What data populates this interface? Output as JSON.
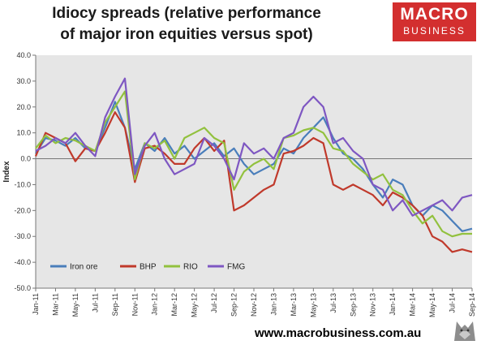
{
  "header": {
    "title_line1": "Idiocy spreads (relative performance",
    "title_line2": "of major iron equities versus spot)"
  },
  "logo": {
    "line1": "MACRO",
    "line2": "BUSINESS"
  },
  "footer": {
    "url": "www.macrobusiness.com.au"
  },
  "colors": {
    "plot_bg": "#e6e6e6",
    "logo_bg": "#d32f2f"
  },
  "chart_data": {
    "type": "line",
    "title": "Idiocy spreads (relative performance of major iron equities versus spot)",
    "xlabel": "",
    "ylabel": "Index",
    "ylim": [
      -50,
      40
    ],
    "yticks": [
      40,
      30,
      20,
      10,
      0,
      -10,
      -20,
      -30,
      -40,
      -50
    ],
    "ytick_labels": [
      "40.0",
      "30.0",
      "20.0",
      "10.0",
      "0.0",
      "-10.0",
      "-20.0",
      "-30.0",
      "-40.0",
      "-50.0"
    ],
    "xlim": [
      0,
      44
    ],
    "xticks": [
      "Jan-11",
      "Mar-11",
      "May-11",
      "Jul-11",
      "Sep-11",
      "Nov-11",
      "Jan-12",
      "Mar-12",
      "May-12",
      "Jul-12",
      "Sep-12",
      "Nov-12",
      "Jan-13",
      "Mar-13",
      "May-13",
      "Jul-13",
      "Sep-13",
      "Nov-13",
      "Jan-14",
      "Mar-14",
      "May-14",
      "Jul-14",
      "Sep-14"
    ],
    "grid": false,
    "legend_position": "bottom-left",
    "x": [
      0,
      1,
      2,
      3,
      4,
      5,
      6,
      7,
      8,
      9,
      10,
      11,
      12,
      13,
      14,
      15,
      16,
      17,
      18,
      19,
      20,
      21,
      22,
      23,
      24,
      25,
      26,
      27,
      28,
      29,
      30,
      31,
      32,
      33,
      34,
      35,
      36,
      37,
      38,
      39,
      40,
      41,
      42,
      43,
      44
    ],
    "series": [
      {
        "name": "Iron ore",
        "color": "#4a7ebb",
        "values": [
          2,
          8,
          7,
          5,
          8,
          4,
          3,
          12,
          22,
          12,
          -4,
          6,
          3,
          8,
          2,
          5,
          0,
          3,
          6,
          1,
          4,
          -2,
          -6,
          -4,
          -2,
          4,
          2,
          8,
          12,
          16,
          8,
          2,
          0,
          -4,
          -10,
          -15,
          -8,
          -10,
          -18,
          -22,
          -18,
          -20,
          -24,
          -28,
          -27
        ]
      },
      {
        "name": "BHP",
        "color": "#c0392b",
        "values": [
          1,
          10,
          8,
          6,
          -1,
          4,
          3,
          10,
          18,
          12,
          -9,
          4,
          5,
          2,
          -2,
          -2,
          4,
          8,
          3,
          7,
          -20,
          -18,
          -15,
          -12,
          -10,
          2,
          3,
          5,
          8,
          6,
          -10,
          -12,
          -10,
          -12,
          -14,
          -18,
          -13,
          -15,
          -18,
          -22,
          -30,
          -32,
          -36,
          -35,
          -36
        ]
      },
      {
        "name": "RIO",
        "color": "#92c13e",
        "values": [
          4,
          9,
          6,
          8,
          7,
          5,
          3,
          14,
          20,
          26,
          -8,
          6,
          4,
          7,
          0,
          8,
          10,
          12,
          8,
          6,
          -12,
          -5,
          -2,
          0,
          -4,
          8,
          9,
          11,
          12,
          10,
          4,
          3,
          -2,
          -5,
          -8,
          -6,
          -12,
          -14,
          -20,
          -25,
          -22,
          -28,
          -30,
          -29,
          -29
        ]
      },
      {
        "name": "FMG",
        "color": "#7e57c2",
        "values": [
          3,
          5,
          8,
          6,
          10,
          5,
          1,
          16,
          24,
          31,
          -6,
          5,
          10,
          0,
          -6,
          -4,
          -2,
          8,
          5,
          0,
          -8,
          6,
          2,
          4,
          0,
          8,
          10,
          20,
          24,
          20,
          6,
          8,
          3,
          0,
          -10,
          -12,
          -20,
          -16,
          -22,
          -20,
          -18,
          -16,
          -20,
          -15,
          -14
        ]
      }
    ]
  }
}
